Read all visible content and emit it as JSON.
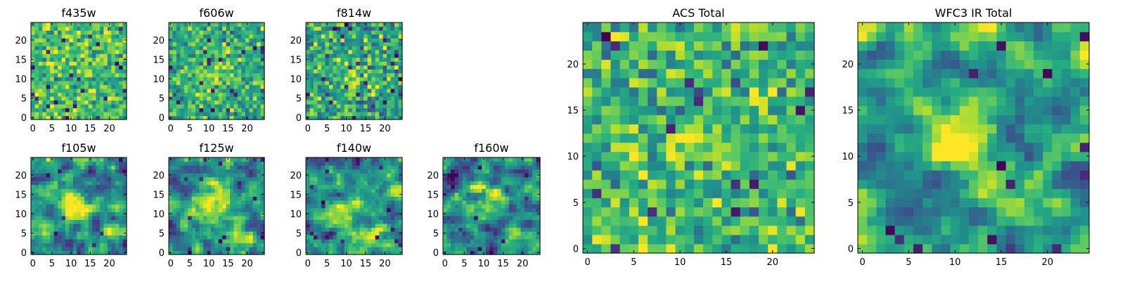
{
  "chart_data": [
    {
      "type": "heatmap",
      "title": "f435w",
      "grid_size": 25,
      "xticks": [
        0,
        5,
        10,
        15,
        20
      ],
      "yticks": [
        0,
        5,
        10,
        15,
        20
      ],
      "xlim": [
        -0.5,
        24.5
      ],
      "ylim": [
        -0.5,
        24.5
      ],
      "colormap": "viridis",
      "seed": 11,
      "base": 0.7,
      "noise": 0.15,
      "smooth": 0,
      "outlier_rate": 0.02,
      "blobs": []
    },
    {
      "type": "heatmap",
      "title": "f606w",
      "grid_size": 25,
      "xticks": [
        0,
        5,
        10,
        15,
        20
      ],
      "yticks": [
        0,
        5,
        10,
        15,
        20
      ],
      "xlim": [
        -0.5,
        24.5
      ],
      "ylim": [
        -0.5,
        24.5
      ],
      "colormap": "viridis",
      "seed": 23,
      "base": 0.62,
      "noise": 0.15,
      "smooth": 0,
      "outlier_rate": 0.02,
      "blobs": [
        {
          "x": 12,
          "y": 11,
          "amp": 0.22,
          "sigma": 3
        }
      ]
    },
    {
      "type": "heatmap",
      "title": "f814w",
      "grid_size": 25,
      "xticks": [
        0,
        5,
        10,
        15,
        20
      ],
      "yticks": [
        0,
        5,
        10,
        15,
        20
      ],
      "xlim": [
        -0.5,
        24.5
      ],
      "ylim": [
        -0.5,
        24.5
      ],
      "colormap": "viridis",
      "seed": 37,
      "base": 0.58,
      "noise": 0.17,
      "smooth": 0,
      "outlier_rate": 0.03,
      "blobs": [
        {
          "x": 12,
          "y": 11,
          "amp": 0.25,
          "sigma": 3
        }
      ]
    },
    {
      "type": "heatmap",
      "title": "f105w",
      "grid_size": 25,
      "xticks": [
        0,
        5,
        10,
        15,
        20
      ],
      "yticks": [
        0,
        5,
        10,
        15,
        20
      ],
      "xlim": [
        -0.5,
        24.5
      ],
      "ylim": [
        -0.5,
        24.5
      ],
      "colormap": "viridis",
      "seed": 41,
      "base": 0.5,
      "noise": 0.25,
      "smooth": 1,
      "outlier_rate": 0.015,
      "blobs": [
        {
          "x": 11,
          "y": 12,
          "amp": 0.4,
          "sigma": 3
        },
        {
          "x": 19,
          "y": 4,
          "amp": 0.25,
          "sigma": 2.5
        }
      ]
    },
    {
      "type": "heatmap",
      "title": "f125w",
      "grid_size": 25,
      "xticks": [
        0,
        5,
        10,
        15,
        20
      ],
      "yticks": [
        0,
        5,
        10,
        15,
        20
      ],
      "xlim": [
        -0.5,
        24.5
      ],
      "ylim": [
        -0.5,
        24.5
      ],
      "colormap": "viridis",
      "seed": 53,
      "base": 0.5,
      "noise": 0.25,
      "smooth": 1,
      "outlier_rate": 0.015,
      "blobs": [
        {
          "x": 11,
          "y": 12,
          "amp": 0.35,
          "sigma": 3
        },
        {
          "x": 19,
          "y": 4,
          "amp": 0.3,
          "sigma": 2.5
        }
      ]
    },
    {
      "type": "heatmap",
      "title": "f140w",
      "grid_size": 25,
      "xticks": [
        0,
        5,
        10,
        15,
        20
      ],
      "yticks": [
        0,
        5,
        10,
        15,
        20
      ],
      "xlim": [
        -0.5,
        24.5
      ],
      "ylim": [
        -0.5,
        24.5
      ],
      "colormap": "viridis",
      "seed": 67,
      "base": 0.48,
      "noise": 0.25,
      "smooth": 1,
      "outlier_rate": 0.015,
      "blobs": [
        {
          "x": 10,
          "y": 11,
          "amp": 0.42,
          "sigma": 3.5
        },
        {
          "x": 18,
          "y": 4,
          "amp": 0.28,
          "sigma": 2.5
        }
      ]
    },
    {
      "type": "heatmap",
      "title": "f160w",
      "grid_size": 25,
      "xticks": [
        0,
        5,
        10,
        15,
        20
      ],
      "yticks": [
        0,
        5,
        10,
        15,
        20
      ],
      "xlim": [
        -0.5,
        24.5
      ],
      "ylim": [
        -0.5,
        24.5
      ],
      "colormap": "viridis",
      "seed": 79,
      "base": 0.45,
      "noise": 0.25,
      "smooth": 1,
      "outlier_rate": 0.02,
      "blobs": [
        {
          "x": 11,
          "y": 12,
          "amp": 0.45,
          "sigma": 3
        },
        {
          "x": 18,
          "y": 4,
          "amp": 0.3,
          "sigma": 2.5
        }
      ]
    },
    {
      "type": "heatmap",
      "title": "ACS Total",
      "grid_size": 25,
      "xticks": [
        0,
        5,
        10,
        15,
        20
      ],
      "yticks": [
        0,
        5,
        10,
        15,
        20
      ],
      "xlim": [
        -0.5,
        24.5
      ],
      "ylim": [
        -0.5,
        24.5
      ],
      "colormap": "viridis",
      "seed": 97,
      "base": 0.66,
      "noise": 0.15,
      "smooth": 0,
      "outlier_rate": 0.02,
      "blobs": [
        {
          "x": 11,
          "y": 11,
          "amp": 0.25,
          "sigma": 2
        }
      ]
    },
    {
      "type": "heatmap",
      "title": "WFC3 IR Total",
      "grid_size": 25,
      "xticks": [
        0,
        5,
        10,
        15,
        20
      ],
      "yticks": [
        0,
        5,
        10,
        15,
        20
      ],
      "xlim": [
        -0.5,
        24.5
      ],
      "ylim": [
        -0.5,
        24.5
      ],
      "colormap": "viridis",
      "seed": 101,
      "base": 0.5,
      "noise": 0.22,
      "smooth": 1,
      "outlier_rate": 0.02,
      "blobs": [
        {
          "x": 11,
          "y": 12,
          "amp": 0.45,
          "sigma": 3
        },
        {
          "x": 18,
          "y": 3,
          "amp": 0.35,
          "sigma": 2.5
        }
      ]
    }
  ],
  "colors": {
    "viridis": [
      "#440154",
      "#472d7b",
      "#3b528b",
      "#2c728e",
      "#21918c",
      "#28ae80",
      "#5ec962",
      "#addc30",
      "#fde725"
    ]
  }
}
